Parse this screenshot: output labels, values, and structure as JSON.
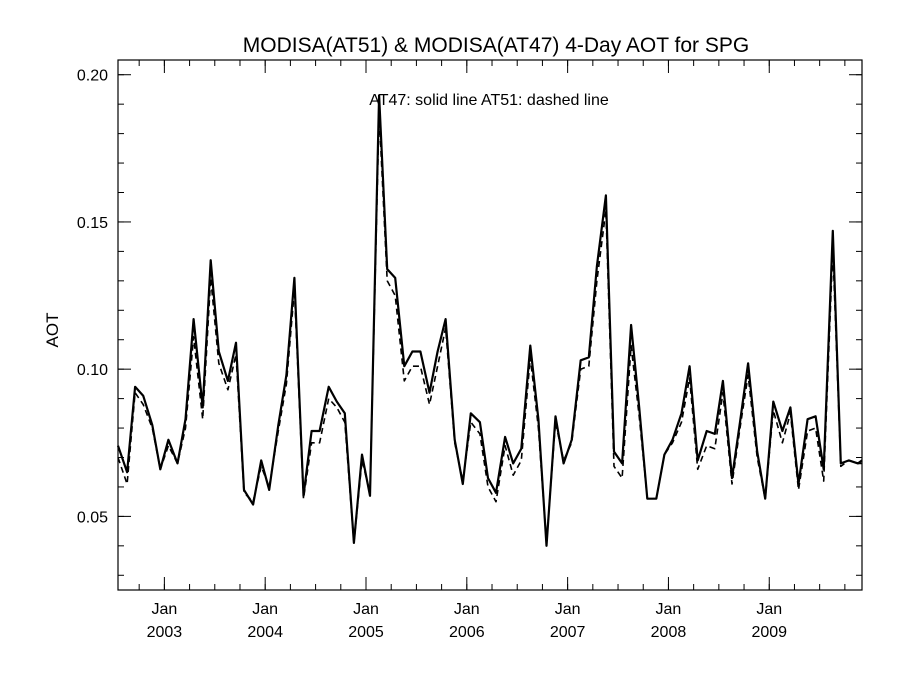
{
  "chart_data": {
    "type": "line",
    "title": "MODISA(AT51) & MODISA(AT47) 4-Day AOT for SPG",
    "ylabel": "AOT",
    "xlabel": "",
    "annotation": "AT47: solid line   AT51: dashed line",
    "ylim": [
      0.025,
      0.205
    ],
    "yticks": [
      0.05,
      0.1,
      0.15,
      0.2
    ],
    "ytick_labels": [
      "0.05",
      "0.10",
      "0.15",
      "0.20"
    ],
    "xlim": [
      2002.54,
      2009.92
    ],
    "xticks": [
      {
        "x": 2003.0,
        "line1": "Jan",
        "line2": "2003"
      },
      {
        "x": 2004.0,
        "line1": "Jan",
        "line2": "2004"
      },
      {
        "x": 2005.0,
        "line1": "Jan",
        "line2": "2005"
      },
      {
        "x": 2006.0,
        "line1": "Jan",
        "line2": "2006"
      },
      {
        "x": 2007.0,
        "line1": "Jan",
        "line2": "2007"
      },
      {
        "x": 2008.0,
        "line1": "Jan",
        "line2": "2008"
      },
      {
        "x": 2009.0,
        "line1": "Jan",
        "line2": "2009"
      }
    ],
    "grid": false,
    "series": [
      {
        "name": "AT47",
        "style": "solid",
        "color": "#000000",
        "x": [
          2002.54,
          2002.63,
          2002.71,
          2002.79,
          2002.88,
          2002.96,
          2003.04,
          2003.13,
          2003.21,
          2003.29,
          2003.38,
          2003.46,
          2003.54,
          2003.63,
          2003.71,
          2003.79,
          2003.88,
          2003.96,
          2004.04,
          2004.13,
          2004.21,
          2004.29,
          2004.38,
          2004.46,
          2004.54,
          2004.63,
          2004.71,
          2004.79,
          2004.88,
          2004.96,
          2005.04,
          2005.13,
          2005.21,
          2005.29,
          2005.38,
          2005.46,
          2005.54,
          2005.63,
          2005.71,
          2005.79,
          2005.88,
          2005.96,
          2006.04,
          2006.13,
          2006.21,
          2006.29,
          2006.38,
          2006.46,
          2006.54,
          2006.63,
          2006.71,
          2006.79,
          2006.88,
          2006.96,
          2007.04,
          2007.13,
          2007.21,
          2007.29,
          2007.38,
          2007.46,
          2007.54,
          2007.63,
          2007.71,
          2007.79,
          2007.88,
          2007.96,
          2008.04,
          2008.13,
          2008.21,
          2008.29,
          2008.38,
          2008.46,
          2008.54,
          2008.63,
          2008.71,
          2008.79,
          2008.88,
          2008.96,
          2009.04,
          2009.13,
          2009.21,
          2009.29,
          2009.38,
          2009.46,
          2009.54,
          2009.63,
          2009.71,
          2009.79,
          2009.88,
          2009.92
        ],
        "y": [
          0.074,
          0.065,
          0.094,
          0.091,
          0.081,
          0.066,
          0.076,
          0.068,
          0.083,
          0.117,
          0.087,
          0.137,
          0.106,
          0.096,
          0.109,
          0.059,
          0.054,
          0.069,
          0.059,
          0.081,
          0.098,
          0.131,
          0.057,
          0.079,
          0.079,
          0.094,
          0.089,
          0.085,
          0.041,
          0.071,
          0.057,
          0.193,
          0.134,
          0.131,
          0.101,
          0.106,
          0.106,
          0.092,
          0.106,
          0.117,
          0.076,
          0.061,
          0.085,
          0.082,
          0.063,
          0.058,
          0.077,
          0.068,
          0.073,
          0.108,
          0.083,
          0.04,
          0.084,
          0.068,
          0.076,
          0.103,
          0.104,
          0.135,
          0.159,
          0.072,
          0.068,
          0.115,
          0.087,
          0.056,
          0.056,
          0.071,
          0.076,
          0.085,
          0.101,
          0.069,
          0.079,
          0.078,
          0.096,
          0.063,
          0.082,
          0.102,
          0.072,
          0.056,
          0.089,
          0.079,
          0.087,
          0.061,
          0.083,
          0.084,
          0.066,
          0.147,
          0.068,
          0.069,
          0.068,
          0.069
        ]
      },
      {
        "name": "AT51",
        "style": "dashed",
        "color": "#000000",
        "x": [
          2002.54,
          2002.63,
          2002.71,
          2002.79,
          2002.88,
          2002.96,
          2003.04,
          2003.13,
          2003.21,
          2003.29,
          2003.38,
          2003.46,
          2003.54,
          2003.63,
          2003.71,
          2003.79,
          2003.88,
          2003.96,
          2004.04,
          2004.13,
          2004.21,
          2004.29,
          2004.38,
          2004.46,
          2004.54,
          2004.63,
          2004.71,
          2004.79,
          2004.88,
          2004.96,
          2005.04,
          2005.13,
          2005.21,
          2005.29,
          2005.38,
          2005.46,
          2005.54,
          2005.63,
          2005.71,
          2005.79,
          2005.88,
          2005.96,
          2006.04,
          2006.13,
          2006.21,
          2006.29,
          2006.38,
          2006.46,
          2006.54,
          2006.63,
          2006.71,
          2006.79,
          2006.88,
          2006.96,
          2007.04,
          2007.13,
          2007.21,
          2007.29,
          2007.38,
          2007.46,
          2007.54,
          2007.63,
          2007.71,
          2007.79,
          2007.88,
          2007.96,
          2008.04,
          2008.13,
          2008.21,
          2008.29,
          2008.38,
          2008.46,
          2008.54,
          2008.63,
          2008.71,
          2008.79,
          2008.88,
          2008.96,
          2009.04,
          2009.13,
          2009.21,
          2009.29,
          2009.38,
          2009.46,
          2009.54,
          2009.63,
          2009.71,
          2009.79,
          2009.88,
          2009.92
        ],
        "y": [
          0.07,
          0.061,
          0.092,
          0.088,
          0.08,
          0.066,
          0.074,
          0.068,
          0.08,
          0.111,
          0.083,
          0.131,
          0.102,
          0.093,
          0.105,
          0.058,
          0.055,
          0.067,
          0.06,
          0.079,
          0.095,
          0.127,
          0.056,
          0.075,
          0.075,
          0.09,
          0.087,
          0.082,
          0.041,
          0.069,
          0.058,
          0.187,
          0.13,
          0.125,
          0.096,
          0.101,
          0.101,
          0.088,
          0.101,
          0.114,
          0.075,
          0.062,
          0.082,
          0.078,
          0.06,
          0.055,
          0.074,
          0.064,
          0.069,
          0.104,
          0.08,
          0.041,
          0.082,
          0.069,
          0.075,
          0.1,
          0.101,
          0.13,
          0.154,
          0.067,
          0.063,
          0.108,
          0.084,
          0.056,
          0.056,
          0.071,
          0.075,
          0.082,
          0.097,
          0.066,
          0.074,
          0.073,
          0.092,
          0.061,
          0.08,
          0.098,
          0.07,
          0.056,
          0.086,
          0.075,
          0.085,
          0.059,
          0.079,
          0.08,
          0.062,
          0.141,
          0.067,
          0.069,
          0.068,
          0.068
        ]
      }
    ]
  }
}
